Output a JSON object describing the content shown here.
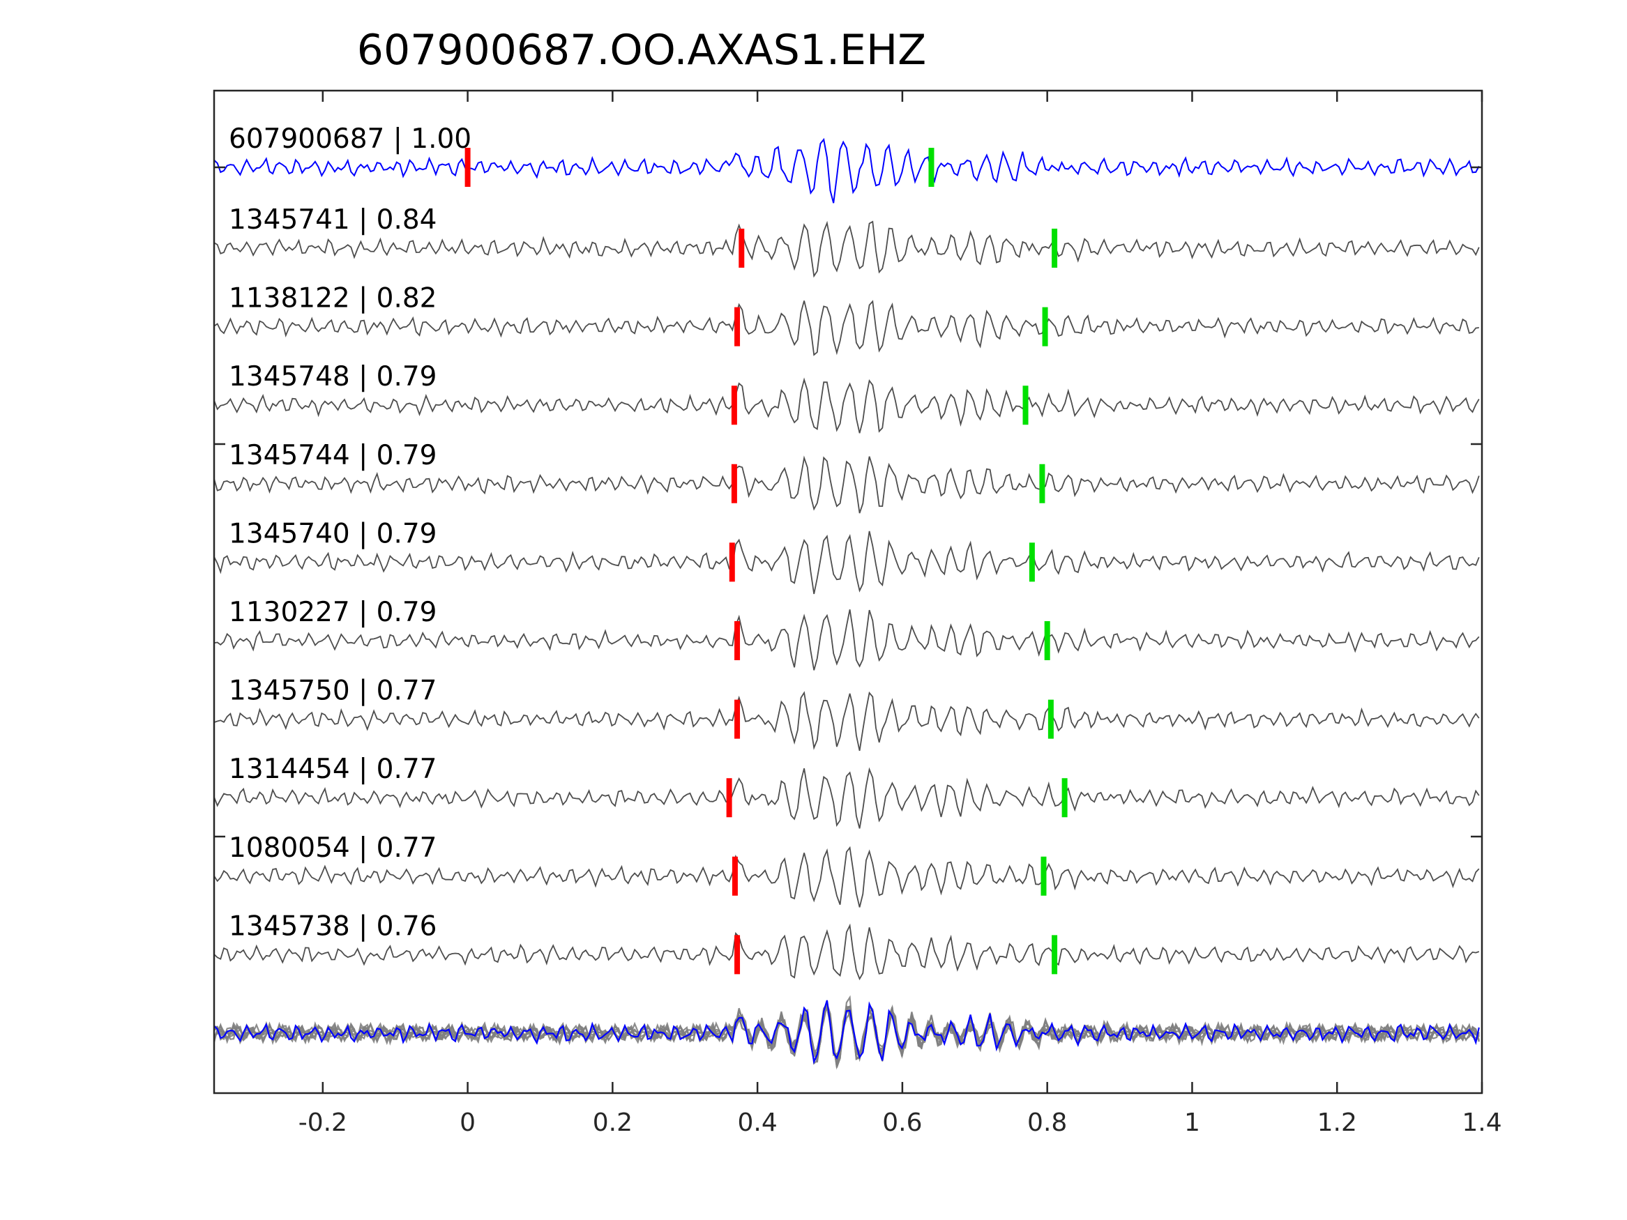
{
  "chart_data": {
    "type": "line",
    "title": "607900687.OO.AXAS1.EHZ",
    "xlabel": "",
    "ylabel": "",
    "xlim": [
      -0.35,
      1.4
    ],
    "xticks": [
      -0.2,
      0,
      0.2,
      0.4,
      0.6,
      0.8,
      1,
      1.2,
      1.4
    ],
    "xtick_labels": [
      "-0.2",
      "0",
      "0.2",
      "0.4",
      "0.6",
      "0.8",
      "1",
      "1.2",
      "1.4"
    ],
    "grid": false,
    "legend": "none",
    "colors": {
      "template": "#0000ff",
      "match": "#4d4d4d",
      "stack": "#808080",
      "p_pick": "#ff0000",
      "s_pick": "#00e000"
    },
    "traces": [
      {
        "label": "607900687 | 1.00",
        "id": "607900687",
        "cc": 1.0,
        "p_pick": 0.0,
        "s_pick": 0.64,
        "onset": 0.36,
        "color": "template"
      },
      {
        "label": "1345741 | 0.84",
        "id": "1345741",
        "cc": 0.84,
        "p_pick": 0.378,
        "s_pick": 0.81,
        "onset": 0.366,
        "color": "match"
      },
      {
        "label": "1138122 | 0.82",
        "id": "1138122",
        "cc": 0.82,
        "p_pick": 0.372,
        "s_pick": 0.797,
        "onset": 0.366,
        "color": "match"
      },
      {
        "label": "1345748 | 0.79",
        "id": "1345748",
        "cc": 0.79,
        "p_pick": 0.368,
        "s_pick": 0.77,
        "onset": 0.366,
        "color": "match"
      },
      {
        "label": "1345744 | 0.79",
        "id": "1345744",
        "cc": 0.79,
        "p_pick": 0.368,
        "s_pick": 0.793,
        "onset": 0.366,
        "color": "match"
      },
      {
        "label": "1345740 | 0.79",
        "id": "1345740",
        "cc": 0.79,
        "p_pick": 0.365,
        "s_pick": 0.779,
        "onset": 0.366,
        "color": "match"
      },
      {
        "label": "1130227 | 0.79",
        "id": "1130227",
        "cc": 0.79,
        "p_pick": 0.372,
        "s_pick": 0.8,
        "onset": 0.366,
        "color": "match"
      },
      {
        "label": "1345750 | 0.77",
        "id": "1345750",
        "cc": 0.77,
        "p_pick": 0.372,
        "s_pick": 0.805,
        "onset": 0.366,
        "color": "match"
      },
      {
        "label": "1314454 | 0.77",
        "id": "1314454",
        "cc": 0.77,
        "p_pick": 0.361,
        "s_pick": 0.824,
        "onset": 0.366,
        "color": "match"
      },
      {
        "label": "1080054 | 0.77",
        "id": "1080054",
        "cc": 0.77,
        "p_pick": 0.369,
        "s_pick": 0.795,
        "onset": 0.366,
        "color": "match"
      },
      {
        "label": "1345738 | 0.76",
        "id": "1345738",
        "cc": 0.76,
        "p_pick": 0.372,
        "s_pick": 0.81,
        "onset": 0.366,
        "color": "match"
      }
    ],
    "stack": {
      "onset": 0.366,
      "template_color": "template",
      "overlay_color": "stack",
      "overlay_count": 10
    }
  }
}
